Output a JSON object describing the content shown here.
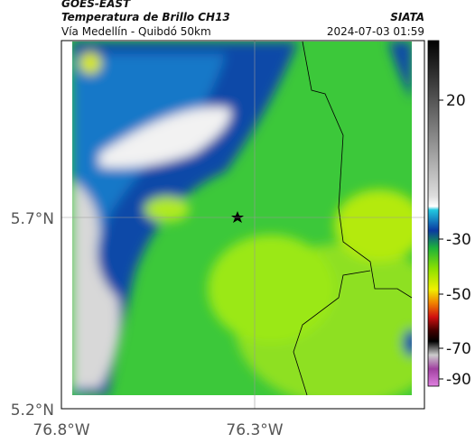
{
  "header": {
    "source": "GOES-EAST",
    "title": "Temperatura de Brillo CH13",
    "org": "SIATA",
    "subtitle": "Vía Medellín - Quibdó 50km",
    "datetime": "2024-07-03 01:59"
  },
  "map": {
    "lat_labels": [
      "5.7°N",
      "5.2°N"
    ],
    "lon_labels": [
      "76.8°W",
      "76.3°W"
    ]
  },
  "colorbar": {
    "ticks": [
      "20",
      "-30",
      "-50",
      "-70",
      "-90"
    ]
  }
}
